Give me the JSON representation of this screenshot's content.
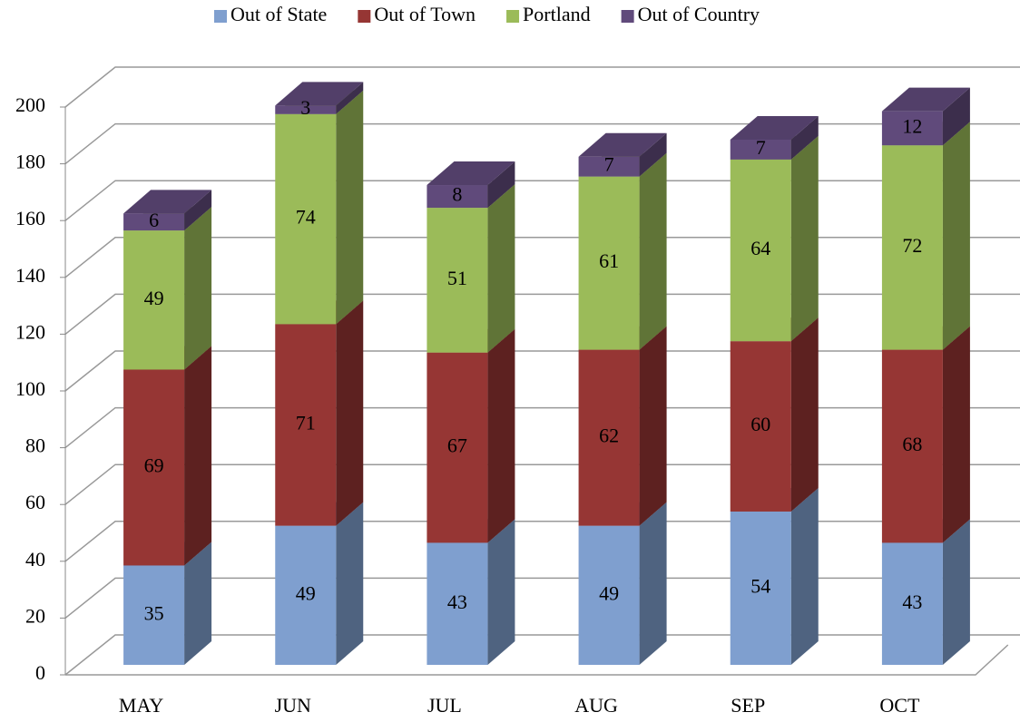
{
  "chart_data": {
    "type": "bar3d_stacked",
    "categories": [
      "MAY",
      "JUN",
      "JUL",
      "AUG",
      "SEP",
      "OCT"
    ],
    "series": [
      {
        "name": "Out of State",
        "color": "#7f9fcf",
        "values": [
          35,
          49,
          43,
          49,
          54,
          43
        ]
      },
      {
        "name": "Out of Town",
        "color": "#963634",
        "values": [
          69,
          71,
          67,
          62,
          60,
          68
        ]
      },
      {
        "name": "Portland",
        "color": "#9bbb59",
        "values": [
          49,
          74,
          51,
          61,
          64,
          72
        ]
      },
      {
        "name": "Out of Country",
        "color": "#604a7b",
        "values": [
          6,
          3,
          8,
          7,
          7,
          12
        ]
      }
    ],
    "ylim": [
      0,
      200
    ],
    "yticks": [
      0,
      20,
      40,
      60,
      80,
      100,
      120,
      140,
      160,
      180,
      200
    ],
    "grid": true,
    "legend": "top"
  }
}
